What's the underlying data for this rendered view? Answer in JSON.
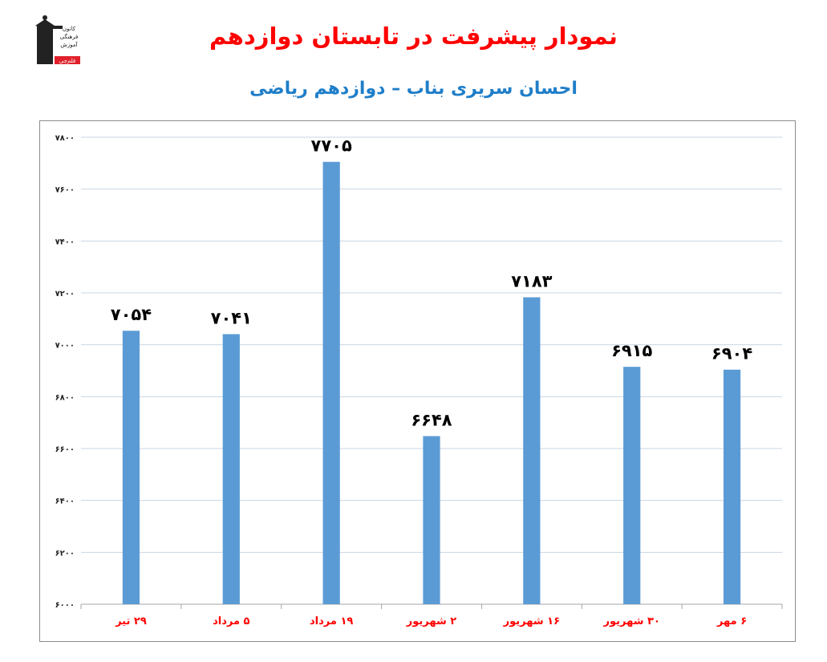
{
  "header": {
    "title": "نمودار پیشرفت در تابستان دوازدهم",
    "subtitle": "احسان سریری بناب – دوازدهم ریاضی",
    "logo_text": [
      "کانون",
      "فرهنگی",
      "آموزش",
      "قلم‌چی"
    ]
  },
  "colors": {
    "bar": "#5b9bd5",
    "title": "#ff0000",
    "subtitle": "#1f7ec9",
    "category_label": "#ff0000",
    "grid": "#c9d6e3"
  },
  "chart_data": {
    "type": "bar",
    "categories": [
      "۲۹ تیر",
      "۵ مرداد",
      "۱۹ مرداد",
      "۲ شهریور",
      "۱۶ شهریور",
      "۳۰ شهریور",
      "۶ مهر"
    ],
    "values": [
      7054,
      7041,
      7705,
      6648,
      7183,
      6915,
      6904
    ],
    "data_labels": [
      "۷۰۵۴",
      "۷۰۴۱",
      "۷۷۰۵",
      "۶۶۴۸",
      "۷۱۸۳",
      "۶۹۱۵",
      "۶۹۰۴"
    ],
    "yticks": [
      6000,
      6200,
      6400,
      6600,
      6800,
      7000,
      7200,
      7400,
      7600,
      7800
    ],
    "ytick_labels": [
      "۶۰۰۰",
      "۶۲۰۰",
      "۶۴۰۰",
      "۶۶۰۰",
      "۶۸۰۰",
      "۷۰۰۰",
      "۷۲۰۰",
      "۷۴۰۰",
      "۷۶۰۰",
      "۷۸۰۰"
    ],
    "ylim": [
      6000,
      7800
    ],
    "grid": true,
    "legend": "none"
  }
}
